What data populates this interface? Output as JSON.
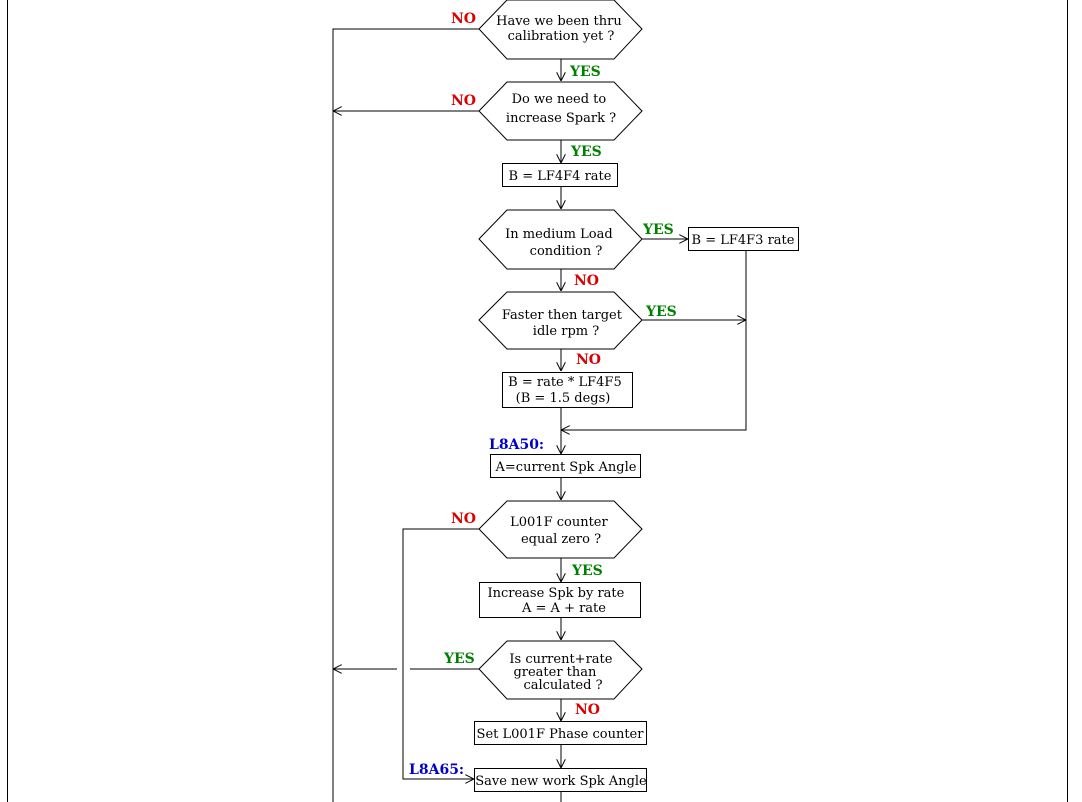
{
  "colors": {
    "no": "#dd0000",
    "yes": "#008000",
    "label": "#0000cc",
    "line": "#000000"
  },
  "decisions": {
    "calibration": [
      "Have we been thru",
      "calibration yet ?"
    ],
    "increase_spark": [
      "Do we need to",
      "increase Spark ?"
    ],
    "medium_load": [
      "In medium Load",
      "condition ?"
    ],
    "faster_target": [
      "Faster then target",
      "idle rpm ?"
    ],
    "counter_zero": [
      "L001F counter",
      "equal zero ?"
    ],
    "current_rate": [
      "Is current+rate",
      "greater than",
      "calculated ?"
    ]
  },
  "processes": {
    "lf4f4": [
      "B = LF4F4 rate"
    ],
    "lf4f3": [
      "B = LF4F3 rate"
    ],
    "lf4f5": [
      "B = rate * LF4F5",
      "(B = 1.5 degs)"
    ],
    "current_angle": [
      "A=current Spk Angle"
    ],
    "increase_spk": [
      "Increase Spk by rate",
      "A = A + rate"
    ],
    "set_phase": [
      "Set L001F Phase counter"
    ],
    "save_angle": [
      "Save new work Spk Angle"
    ]
  },
  "branch_labels": {
    "no": "NO",
    "yes": "YES"
  },
  "code_labels": {
    "l8a50": "L8A50:",
    "l8a65": "L8A65:"
  }
}
